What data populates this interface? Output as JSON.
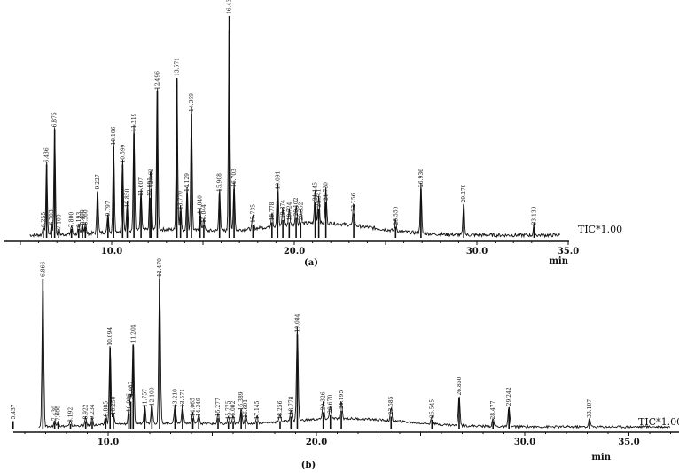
{
  "chart_data": [
    {
      "type": "line",
      "panel_label": "(a)",
      "trace_label": "TIC*1.00",
      "xlabel": "min",
      "xlim": [
        3.5,
        35.8
      ],
      "xticks": [
        "10.0",
        "20.0",
        "30.0",
        "35.0"
      ],
      "xtick_values": [
        10.0,
        20.0,
        30.0,
        35.0
      ],
      "ylim": [
        0,
        100
      ],
      "peaks": [
        {
          "rt": 6.436,
          "label": "6.436",
          "h": 33
        },
        {
          "rt": 6.875,
          "label": "6.875",
          "h": 49
        },
        {
          "rt": 7.1,
          "label": "7.100",
          "h": 3
        },
        {
          "rt": 6.255,
          "label": "6.255",
          "h": 4
        },
        {
          "rt": 6.703,
          "label": "6.703",
          "h": 5
        },
        {
          "rt": 7.8,
          "label": "7.800",
          "h": 4
        },
        {
          "rt": 8.193,
          "label": "8.193",
          "h": 4
        },
        {
          "rt": 8.4,
          "label": "8.400",
          "h": 5
        },
        {
          "rt": 8.56,
          "label": "8.560",
          "h": 5
        },
        {
          "rt": 9.227,
          "label": "9.227",
          "h": 21
        },
        {
          "rt": 9.797,
          "label": "9.797",
          "h": 9
        },
        {
          "rt": 10.106,
          "label": "10.106",
          "h": 41
        },
        {
          "rt": 10.599,
          "label": "10.599",
          "h": 33
        },
        {
          "rt": 10.85,
          "label": "10.850",
          "h": 13
        },
        {
          "rt": 11.219,
          "label": "11.219",
          "h": 47
        },
        {
          "rt": 11.607,
          "label": "11.607",
          "h": 18
        },
        {
          "rt": 12.091,
          "label": "12.091",
          "h": 18
        },
        {
          "rt": 12.162,
          "label": "12.162",
          "h": 22
        },
        {
          "rt": 12.496,
          "label": "12.496",
          "h": 66
        },
        {
          "rt": 13.571,
          "label": "13.571",
          "h": 72
        },
        {
          "rt": 13.77,
          "label": "13.770",
          "h": 12
        },
        {
          "rt": 14.129,
          "label": "14.129",
          "h": 20
        },
        {
          "rt": 14.369,
          "label": "14.369",
          "h": 56
        },
        {
          "rt": 14.84,
          "label": "14.840",
          "h": 10
        },
        {
          "rt": 15.044,
          "label": "15.044",
          "h": 6
        },
        {
          "rt": 15.908,
          "label": "15.908",
          "h": 20
        },
        {
          "rt": 16.437,
          "label": "16.437",
          "h": 100
        },
        {
          "rt": 16.703,
          "label": "16.703",
          "h": 22
        },
        {
          "rt": 17.735,
          "label": "17.735",
          "h": 6
        },
        {
          "rt": 18.778,
          "label": "18.778",
          "h": 7
        },
        {
          "rt": 19.091,
          "label": "19.091",
          "h": 21
        },
        {
          "rt": 19.374,
          "label": "19.374",
          "h": 8
        },
        {
          "rt": 19.724,
          "label": "19.724",
          "h": 7
        },
        {
          "rt": 20.102,
          "label": "20.102",
          "h": 9
        },
        {
          "rt": 20.352,
          "label": "20.352",
          "h": 7
        },
        {
          "rt": 21.145,
          "label": "21.145",
          "h": 16
        },
        {
          "rt": 21.341,
          "label": "21.341",
          "h": 13
        },
        {
          "rt": 21.73,
          "label": "21.730",
          "h": 16
        },
        {
          "rt": 23.256,
          "label": "23.256",
          "h": 11
        },
        {
          "rt": 25.55,
          "label": "25.550",
          "h": 5
        },
        {
          "rt": 26.936,
          "label": "26.936",
          "h": 22
        },
        {
          "rt": 29.279,
          "label": "29.279",
          "h": 15
        },
        {
          "rt": 33.13,
          "label": "33.130",
          "h": 5
        }
      ]
    },
    {
      "type": "line",
      "panel_label": "(b)",
      "trace_label": "TIC*1.00",
      "xlabel": "min",
      "xlim": [
        5.0,
        37.0
      ],
      "xticks": [
        "10.0",
        "20.0",
        "30.0",
        "35.0"
      ],
      "xtick_values": [
        10.0,
        20.0,
        30.0,
        35.0
      ],
      "ylim": [
        0,
        100
      ],
      "peaks": [
        {
          "rt": 5.437,
          "label": "5.437",
          "h": 5
        },
        {
          "rt": 6.866,
          "label": "6.866",
          "h": 100
        },
        {
          "rt": 7.43,
          "label": "7.430",
          "h": 4
        },
        {
          "rt": 7.6,
          "label": "7.600",
          "h": 4
        },
        {
          "rt": 8.192,
          "label": "8.192",
          "h": 3
        },
        {
          "rt": 8.922,
          "label": "8.922",
          "h": 5
        },
        {
          "rt": 9.234,
          "label": "9.234",
          "h": 5
        },
        {
          "rt": 9.885,
          "label": "9.885",
          "h": 7
        },
        {
          "rt": 10.094,
          "label": "10.094",
          "h": 54
        },
        {
          "rt": 10.25,
          "label": "10.250",
          "h": 8
        },
        {
          "rt": 10.996,
          "label": "10.996",
          "h": 10
        },
        {
          "rt": 11.204,
          "label": "11.204",
          "h": 56
        },
        {
          "rt": 11.087,
          "label": "11.087",
          "h": 18
        },
        {
          "rt": 11.757,
          "label": "11.757",
          "h": 13
        },
        {
          "rt": 12.1,
          "label": "12.100",
          "h": 14
        },
        {
          "rt": 12.47,
          "label": "12.470",
          "h": 100
        },
        {
          "rt": 13.21,
          "label": "13.210",
          "h": 13
        },
        {
          "rt": 13.571,
          "label": "13.571",
          "h": 13
        },
        {
          "rt": 14.065,
          "label": "14.065",
          "h": 7
        },
        {
          "rt": 14.349,
          "label": "14.349",
          "h": 7
        },
        {
          "rt": 15.277,
          "label": "15.277",
          "h": 7
        },
        {
          "rt": 15.775,
          "label": "15.775",
          "h": 5
        },
        {
          "rt": 16.002,
          "label": "16.002",
          "h": 5
        },
        {
          "rt": 16.389,
          "label": "16.389",
          "h": 11
        },
        {
          "rt": 16.601,
          "label": "16.601",
          "h": 6
        },
        {
          "rt": 17.145,
          "label": "17.145",
          "h": 5
        },
        {
          "rt": 18.256,
          "label": "18.256",
          "h": 5
        },
        {
          "rt": 18.778,
          "label": "18.778",
          "h": 8
        },
        {
          "rt": 19.084,
          "label": "19.084",
          "h": 63
        },
        {
          "rt": 20.326,
          "label": "20.326",
          "h": 11
        },
        {
          "rt": 20.67,
          "label": "20.670",
          "h": 9
        },
        {
          "rt": 21.195,
          "label": "21.195",
          "h": 12
        },
        {
          "rt": 23.585,
          "label": "23.585",
          "h": 8
        },
        {
          "rt": 25.545,
          "label": "25.545",
          "h": 6
        },
        {
          "rt": 26.85,
          "label": "26.850",
          "h": 21
        },
        {
          "rt": 28.477,
          "label": "28.477",
          "h": 5
        },
        {
          "rt": 29.242,
          "label": "29.242",
          "h": 14
        },
        {
          "rt": 33.107,
          "label": "33.107",
          "h": 6
        }
      ]
    }
  ]
}
